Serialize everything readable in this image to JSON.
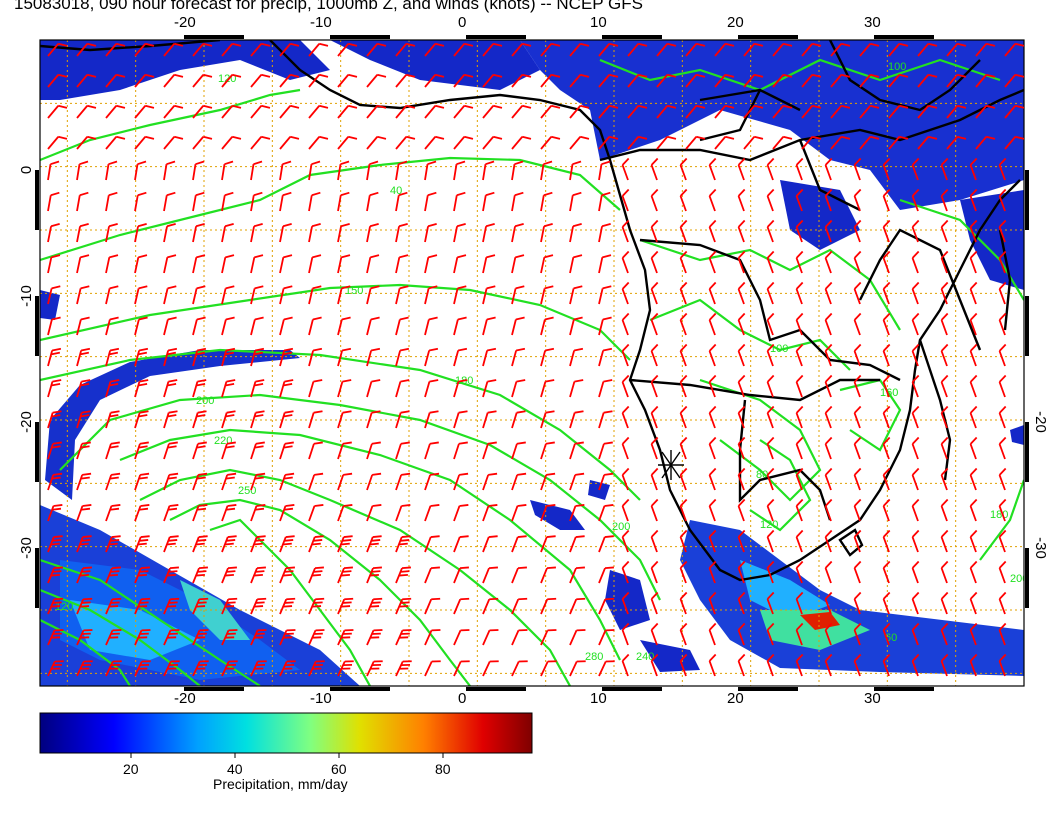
{
  "title": "15083018, 090 hour forecast for precip, 1000mb Z, and winds (knots) -- NCEP GFS",
  "map": {
    "lon_range": [
      -32,
      40
    ],
    "lat_range": [
      -41,
      10
    ],
    "lon_ticks": [
      "-20",
      "-10",
      "0",
      "10",
      "20",
      "30"
    ],
    "lat_ticks": [
      "0",
      "-10",
      "-20",
      "-30"
    ],
    "gridlines": "dotted orange every 5 degrees"
  },
  "colorbar": {
    "title": "Precipitation, mm/day",
    "tick_labels": [
      "20",
      "40",
      "60",
      "80"
    ],
    "range": [
      0,
      98
    ],
    "colors": [
      "#00007f",
      "#0000ff",
      "#00a0ff",
      "#00e0e0",
      "#80ff80",
      "#e0e000",
      "#ff8000",
      "#e00000",
      "#7f0000"
    ]
  },
  "contour_labels": [
    "120",
    "40",
    "150",
    "180",
    "200",
    "220",
    "250",
    "280",
    "240",
    "200",
    "100",
    "80",
    "120",
    "160",
    "180",
    "200",
    "60",
    "100",
    "120"
  ],
  "colors": {
    "contour": "#22e022",
    "wind_barb": "#ff0000",
    "coastline": "#000000",
    "grid": "#e0a000"
  }
}
